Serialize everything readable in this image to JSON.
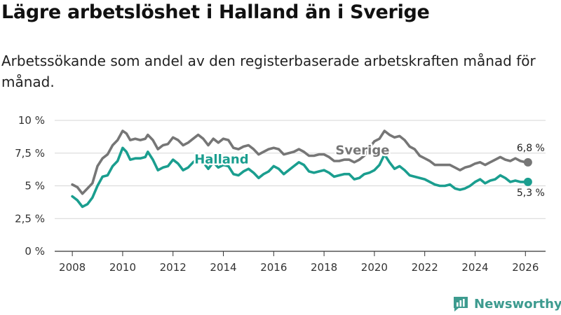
{
  "header": {
    "title": "Lägre arbetslöshet i Halland än i Sverige",
    "subtitle": "Arbetssökande som andel av den registerbaserade arbetskraften månad för månad."
  },
  "brand": {
    "name": "Newsworthy",
    "icon": "newsworthy-logo-icon"
  },
  "colors": {
    "halland": "#1a9e8f",
    "sverige": "#767676",
    "grid": "#d6d6d6",
    "axis": "#333333"
  },
  "chart_data": {
    "type": "line",
    "title": "Lägre arbetslöshet i Halland än i Sverige",
    "xlabel": "",
    "ylabel": "",
    "xlim": [
      2007.3,
      2026.8
    ],
    "ylim": [
      0,
      10
    ],
    "y_ticks": [
      0,
      2.5,
      5,
      7.5,
      10
    ],
    "y_tick_labels": [
      "0 %",
      "2,5 %",
      "5 %",
      "7,5 %",
      "10 %"
    ],
    "x_ticks": [
      2008,
      2010,
      2012,
      2014,
      2016,
      2018,
      2020,
      2022,
      2024,
      2026
    ],
    "x_tick_labels": [
      "2008",
      "2010",
      "2012",
      "2014",
      "2016",
      "2018",
      "2020",
      "2022",
      "2024",
      "2026"
    ],
    "grid": true,
    "series": [
      {
        "name": "Sverige",
        "label": "Sverige",
        "end_label": "6,8 %",
        "color": "#767676",
        "x": [
          2008.0,
          2008.2,
          2008.4,
          2008.6,
          2008.8,
          2009.0,
          2009.2,
          2009.4,
          2009.6,
          2009.8,
          2010.0,
          2010.15,
          2010.3,
          2010.5,
          2010.7,
          2010.9,
          2011.0,
          2011.2,
          2011.4,
          2011.6,
          2011.8,
          2012.0,
          2012.2,
          2012.4,
          2012.6,
          2012.8,
          2013.0,
          2013.2,
          2013.4,
          2013.6,
          2013.8,
          2014.0,
          2014.2,
          2014.4,
          2014.6,
          2014.8,
          2015.0,
          2015.2,
          2015.4,
          2015.6,
          2015.8,
          2016.0,
          2016.2,
          2016.4,
          2016.6,
          2016.8,
          2017.0,
          2017.2,
          2017.4,
          2017.6,
          2017.8,
          2018.0,
          2018.2,
          2018.4,
          2018.6,
          2018.8,
          2019.0,
          2019.2,
          2019.4,
          2019.6,
          2019.8,
          2020.0,
          2020.2,
          2020.4,
          2020.6,
          2020.8,
          2021.0,
          2021.2,
          2021.4,
          2021.6,
          2021.8,
          2022.0,
          2022.2,
          2022.4,
          2022.6,
          2022.8,
          2023.0,
          2023.2,
          2023.4,
          2023.6,
          2023.8,
          2024.0,
          2024.2,
          2024.4,
          2024.6,
          2024.8,
          2025.0,
          2025.2,
          2025.4,
          2025.6,
          2025.8,
          2026.0,
          2026.1
        ],
        "values": [
          5.1,
          4.9,
          4.4,
          4.8,
          5.2,
          6.5,
          7.1,
          7.4,
          8.1,
          8.5,
          9.2,
          9.0,
          8.5,
          8.6,
          8.5,
          8.6,
          8.9,
          8.5,
          7.8,
          8.1,
          8.2,
          8.7,
          8.5,
          8.1,
          8.3,
          8.6,
          8.9,
          8.6,
          8.1,
          8.6,
          8.3,
          8.6,
          8.5,
          7.9,
          7.8,
          8.0,
          8.1,
          7.8,
          7.4,
          7.6,
          7.8,
          7.9,
          7.8,
          7.4,
          7.5,
          7.6,
          7.8,
          7.6,
          7.3,
          7.3,
          7.4,
          7.4,
          7.2,
          6.9,
          6.9,
          7.0,
          7.0,
          6.8,
          7.0,
          7.3,
          7.9,
          8.4,
          8.6,
          9.2,
          8.9,
          8.7,
          8.8,
          8.5,
          8.0,
          7.8,
          7.3,
          7.1,
          6.9,
          6.6,
          6.6,
          6.6,
          6.6,
          6.4,
          6.2,
          6.4,
          6.5,
          6.7,
          6.8,
          6.6,
          6.8,
          7.0,
          7.2,
          7.0,
          6.9,
          7.1,
          6.9,
          6.8,
          6.8
        ]
      },
      {
        "name": "Halland",
        "label": "Halland",
        "end_label": "5,3 %",
        "color": "#1a9e8f",
        "x": [
          2008.0,
          2008.2,
          2008.4,
          2008.6,
          2008.8,
          2009.0,
          2009.2,
          2009.4,
          2009.6,
          2009.8,
          2010.0,
          2010.15,
          2010.3,
          2010.5,
          2010.7,
          2010.9,
          2011.0,
          2011.2,
          2011.4,
          2011.6,
          2011.8,
          2012.0,
          2012.2,
          2012.4,
          2012.6,
          2012.8,
          2013.0,
          2013.2,
          2013.4,
          2013.6,
          2013.8,
          2014.0,
          2014.2,
          2014.4,
          2014.6,
          2014.8,
          2015.0,
          2015.2,
          2015.4,
          2015.6,
          2015.8,
          2016.0,
          2016.2,
          2016.4,
          2016.6,
          2016.8,
          2017.0,
          2017.2,
          2017.4,
          2017.6,
          2017.8,
          2018.0,
          2018.2,
          2018.4,
          2018.6,
          2018.8,
          2019.0,
          2019.2,
          2019.4,
          2019.6,
          2019.8,
          2020.0,
          2020.2,
          2020.4,
          2020.6,
          2020.8,
          2021.0,
          2021.2,
          2021.4,
          2021.6,
          2021.8,
          2022.0,
          2022.2,
          2022.4,
          2022.6,
          2022.8,
          2023.0,
          2023.2,
          2023.4,
          2023.6,
          2023.8,
          2024.0,
          2024.2,
          2024.4,
          2024.6,
          2024.8,
          2025.0,
          2025.2,
          2025.4,
          2025.6,
          2025.8,
          2026.0,
          2026.1
        ],
        "values": [
          4.2,
          3.9,
          3.4,
          3.6,
          4.1,
          5.0,
          5.7,
          5.8,
          6.5,
          6.9,
          7.9,
          7.6,
          7.0,
          7.1,
          7.1,
          7.2,
          7.6,
          7.0,
          6.2,
          6.4,
          6.5,
          7.0,
          6.7,
          6.2,
          6.4,
          6.8,
          7.1,
          6.8,
          6.3,
          6.8,
          6.4,
          6.6,
          6.5,
          5.9,
          5.8,
          6.1,
          6.3,
          6.0,
          5.6,
          5.9,
          6.1,
          6.5,
          6.3,
          5.9,
          6.2,
          6.5,
          6.8,
          6.6,
          6.1,
          6.0,
          6.1,
          6.2,
          6.0,
          5.7,
          5.8,
          5.9,
          5.9,
          5.5,
          5.6,
          5.9,
          6.0,
          6.2,
          6.6,
          7.4,
          6.8,
          6.3,
          6.5,
          6.2,
          5.8,
          5.7,
          5.6,
          5.5,
          5.3,
          5.1,
          5.0,
          5.0,
          5.1,
          4.8,
          4.7,
          4.8,
          5.0,
          5.3,
          5.5,
          5.2,
          5.4,
          5.5,
          5.8,
          5.6,
          5.3,
          5.4,
          5.3,
          5.3,
          5.3
        ]
      }
    ]
  }
}
